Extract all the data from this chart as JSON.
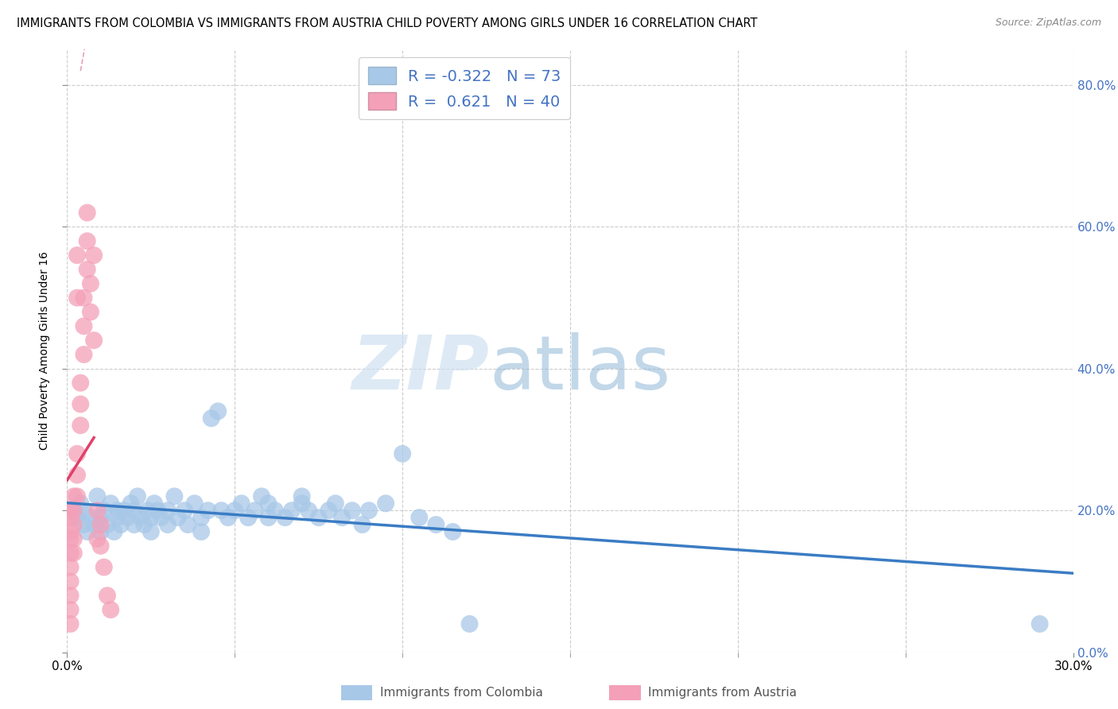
{
  "title": "IMMIGRANTS FROM COLOMBIA VS IMMIGRANTS FROM AUSTRIA CHILD POVERTY AMONG GIRLS UNDER 16 CORRELATION CHART",
  "source": "Source: ZipAtlas.com",
  "ylabel": "Child Poverty Among Girls Under 16",
  "xlim": [
    0.0,
    0.3
  ],
  "ylim": [
    0.0,
    0.85
  ],
  "xticks": [
    0.0,
    0.05,
    0.1,
    0.15,
    0.2,
    0.25,
    0.3
  ],
  "xtick_labels": [
    "0.0%",
    "",
    "",
    "",
    "",
    "",
    "30.0%"
  ],
  "yticks": [
    0.0,
    0.2,
    0.4,
    0.6,
    0.8
  ],
  "ytick_labels_right": [
    "0.0%",
    "20.0%",
    "40.0%",
    "60.0%",
    "80.0%"
  ],
  "legend_r_colombia": "-0.322",
  "legend_n_colombia": "73",
  "legend_r_austria": "0.621",
  "legend_n_austria": "40",
  "colombia_color": "#a8c8e8",
  "austria_color": "#f4a0b8",
  "colombia_line_color": "#3a7cc4",
  "austria_line_color": "#e0406a",
  "austria_line_dash_color": "#e8a0b8",
  "background_color": "#ffffff",
  "grid_color": "#cccccc",
  "title_fontsize": 11,
  "axis_fontsize": 10,
  "tick_fontsize": 11,
  "colombia_scatter": [
    [
      0.002,
      0.2
    ],
    [
      0.003,
      0.19
    ],
    [
      0.004,
      0.21
    ],
    [
      0.005,
      0.18
    ],
    [
      0.005,
      0.2
    ],
    [
      0.006,
      0.17
    ],
    [
      0.007,
      0.19
    ],
    [
      0.008,
      0.18
    ],
    [
      0.009,
      0.22
    ],
    [
      0.01,
      0.19
    ],
    [
      0.01,
      0.17
    ],
    [
      0.011,
      0.2
    ],
    [
      0.012,
      0.18
    ],
    [
      0.013,
      0.21
    ],
    [
      0.014,
      0.17
    ],
    [
      0.015,
      0.2
    ],
    [
      0.015,
      0.19
    ],
    [
      0.016,
      0.18
    ],
    [
      0.017,
      0.2
    ],
    [
      0.018,
      0.19
    ],
    [
      0.019,
      0.21
    ],
    [
      0.02,
      0.18
    ],
    [
      0.02,
      0.2
    ],
    [
      0.021,
      0.22
    ],
    [
      0.022,
      0.19
    ],
    [
      0.023,
      0.18
    ],
    [
      0.024,
      0.2
    ],
    [
      0.025,
      0.19
    ],
    [
      0.025,
      0.17
    ],
    [
      0.026,
      0.21
    ],
    [
      0.027,
      0.2
    ],
    [
      0.028,
      0.19
    ],
    [
      0.03,
      0.2
    ],
    [
      0.03,
      0.18
    ],
    [
      0.032,
      0.22
    ],
    [
      0.033,
      0.19
    ],
    [
      0.035,
      0.2
    ],
    [
      0.036,
      0.18
    ],
    [
      0.038,
      0.21
    ],
    [
      0.04,
      0.19
    ],
    [
      0.04,
      0.17
    ],
    [
      0.042,
      0.2
    ],
    [
      0.043,
      0.33
    ],
    [
      0.045,
      0.34
    ],
    [
      0.046,
      0.2
    ],
    [
      0.048,
      0.19
    ],
    [
      0.05,
      0.2
    ],
    [
      0.052,
      0.21
    ],
    [
      0.054,
      0.19
    ],
    [
      0.056,
      0.2
    ],
    [
      0.058,
      0.22
    ],
    [
      0.06,
      0.19
    ],
    [
      0.06,
      0.21
    ],
    [
      0.062,
      0.2
    ],
    [
      0.065,
      0.19
    ],
    [
      0.067,
      0.2
    ],
    [
      0.07,
      0.21
    ],
    [
      0.07,
      0.22
    ],
    [
      0.072,
      0.2
    ],
    [
      0.075,
      0.19
    ],
    [
      0.078,
      0.2
    ],
    [
      0.08,
      0.21
    ],
    [
      0.082,
      0.19
    ],
    [
      0.085,
      0.2
    ],
    [
      0.088,
      0.18
    ],
    [
      0.09,
      0.2
    ],
    [
      0.095,
      0.21
    ],
    [
      0.1,
      0.28
    ],
    [
      0.105,
      0.19
    ],
    [
      0.11,
      0.18
    ],
    [
      0.115,
      0.17
    ],
    [
      0.12,
      0.04
    ],
    [
      0.29,
      0.04
    ]
  ],
  "austria_scatter": [
    [
      0.001,
      0.2
    ],
    [
      0.001,
      0.19
    ],
    [
      0.001,
      0.17
    ],
    [
      0.001,
      0.16
    ],
    [
      0.001,
      0.14
    ],
    [
      0.001,
      0.12
    ],
    [
      0.001,
      0.1
    ],
    [
      0.001,
      0.08
    ],
    [
      0.001,
      0.06
    ],
    [
      0.001,
      0.04
    ],
    [
      0.002,
      0.22
    ],
    [
      0.002,
      0.2
    ],
    [
      0.002,
      0.18
    ],
    [
      0.002,
      0.16
    ],
    [
      0.002,
      0.14
    ],
    [
      0.003,
      0.28
    ],
    [
      0.003,
      0.25
    ],
    [
      0.003,
      0.22
    ],
    [
      0.003,
      0.5
    ],
    [
      0.003,
      0.56
    ],
    [
      0.004,
      0.32
    ],
    [
      0.004,
      0.35
    ],
    [
      0.004,
      0.38
    ],
    [
      0.005,
      0.42
    ],
    [
      0.005,
      0.46
    ],
    [
      0.005,
      0.5
    ],
    [
      0.006,
      0.54
    ],
    [
      0.006,
      0.58
    ],
    [
      0.006,
      0.62
    ],
    [
      0.007,
      0.48
    ],
    [
      0.007,
      0.52
    ],
    [
      0.008,
      0.56
    ],
    [
      0.008,
      0.44
    ],
    [
      0.009,
      0.2
    ],
    [
      0.009,
      0.16
    ],
    [
      0.01,
      0.18
    ],
    [
      0.01,
      0.15
    ],
    [
      0.011,
      0.12
    ],
    [
      0.012,
      0.08
    ],
    [
      0.013,
      0.06
    ]
  ],
  "watermark_zip_color": "#c8dff0",
  "watermark_atlas_color": "#a8c8e0"
}
